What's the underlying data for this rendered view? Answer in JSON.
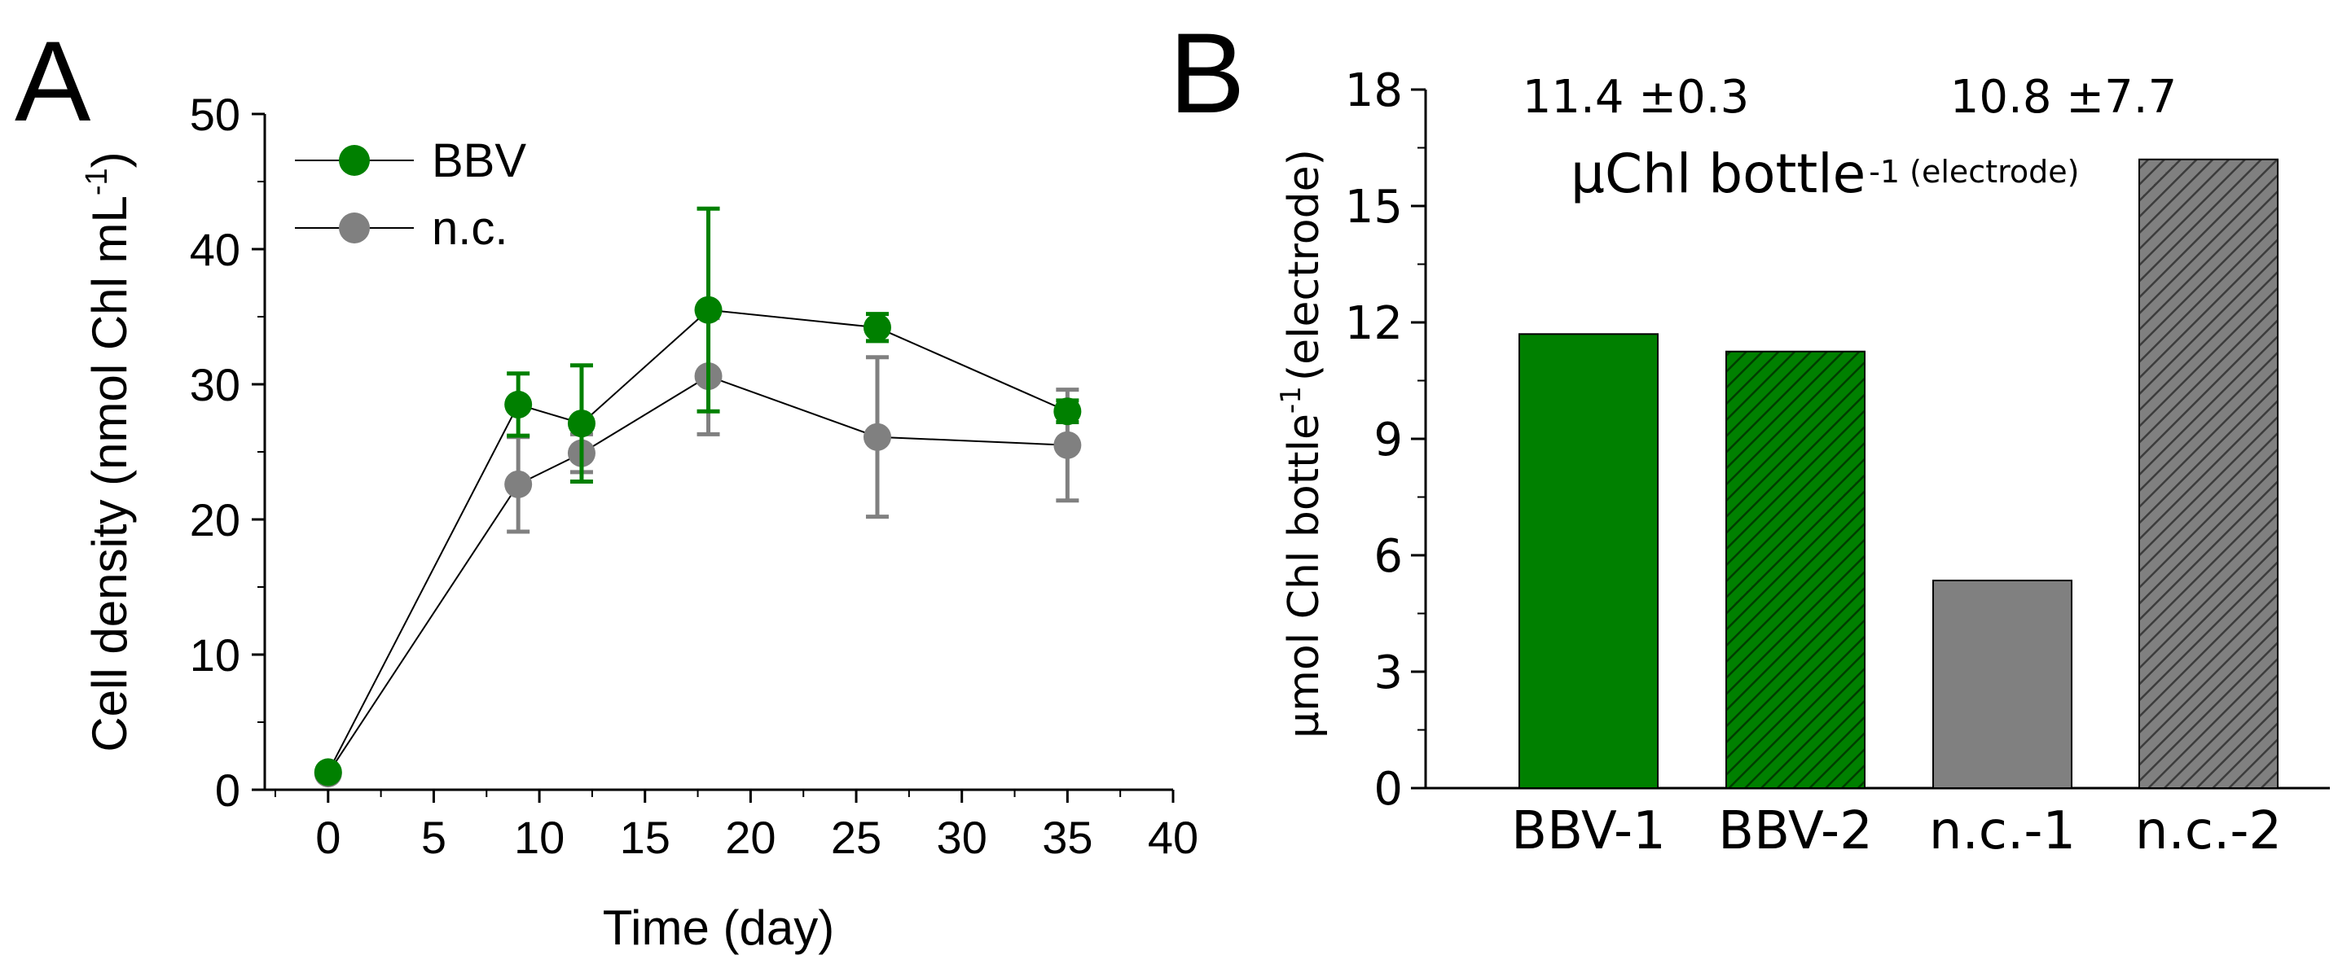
{
  "panels": {
    "a_label": "A",
    "b_label": "B"
  },
  "chart_data": [
    {
      "type": "line",
      "panel": "A",
      "title": "",
      "xlabel": "Time (day)",
      "ylabel_main": "Cell density (nmol Chl mL",
      "ylabel_sup": "-1",
      "ylabel_close": ")",
      "xlim": [
        -3,
        40
      ],
      "ylim": [
        0,
        50
      ],
      "xticks": [
        "0",
        "5",
        "10",
        "15",
        "20",
        "25",
        "30",
        "35",
        "40"
      ],
      "yticks": [
        "0",
        "10",
        "20",
        "30",
        "40",
        "50"
      ],
      "grid": false,
      "legend_position": "top-left",
      "series": [
        {
          "name": "BBV",
          "color": "#008000",
          "x": [
            0,
            9,
            12,
            18,
            26,
            35
          ],
          "y": [
            1.3,
            28.5,
            27.1,
            35.5,
            34.2,
            28.0
          ],
          "err": [
            0.3,
            2.3,
            4.3,
            7.5,
            1.0,
            0.8
          ]
        },
        {
          "name": "n.c.",
          "color": "#808080",
          "x": [
            0,
            9,
            12,
            18,
            26,
            35
          ],
          "y": [
            1.2,
            22.6,
            24.9,
            30.6,
            26.1,
            25.5
          ],
          "err": [
            0.3,
            3.5,
            1.4,
            4.3,
            5.9,
            4.1
          ]
        }
      ]
    },
    {
      "type": "bar",
      "panel": "B",
      "title": "",
      "categories": [
        "BBV-1",
        "BBV-2",
        "n.c.-1",
        "n.c.-2"
      ],
      "values": [
        11.7,
        11.25,
        5.35,
        16.2
      ],
      "bar_colors": [
        "#008000",
        "#008000",
        "#808080",
        "#808080"
      ],
      "hatched": [
        false,
        true,
        false,
        true
      ],
      "ylabel_main": "μmol Chl bottle",
      "ylabel_sup": "-1",
      "ylabel_tail": "(electrode)",
      "ylim": [
        0,
        18
      ],
      "yticks": [
        "0",
        "3",
        "6",
        "9",
        "12",
        "15",
        "18"
      ],
      "grid": false,
      "annotations": [
        "11.4 ±0.3",
        "10.8 ±7.7"
      ],
      "unit_main": "μChl bottle",
      "unit_sup": "-1 (electrode)"
    }
  ]
}
